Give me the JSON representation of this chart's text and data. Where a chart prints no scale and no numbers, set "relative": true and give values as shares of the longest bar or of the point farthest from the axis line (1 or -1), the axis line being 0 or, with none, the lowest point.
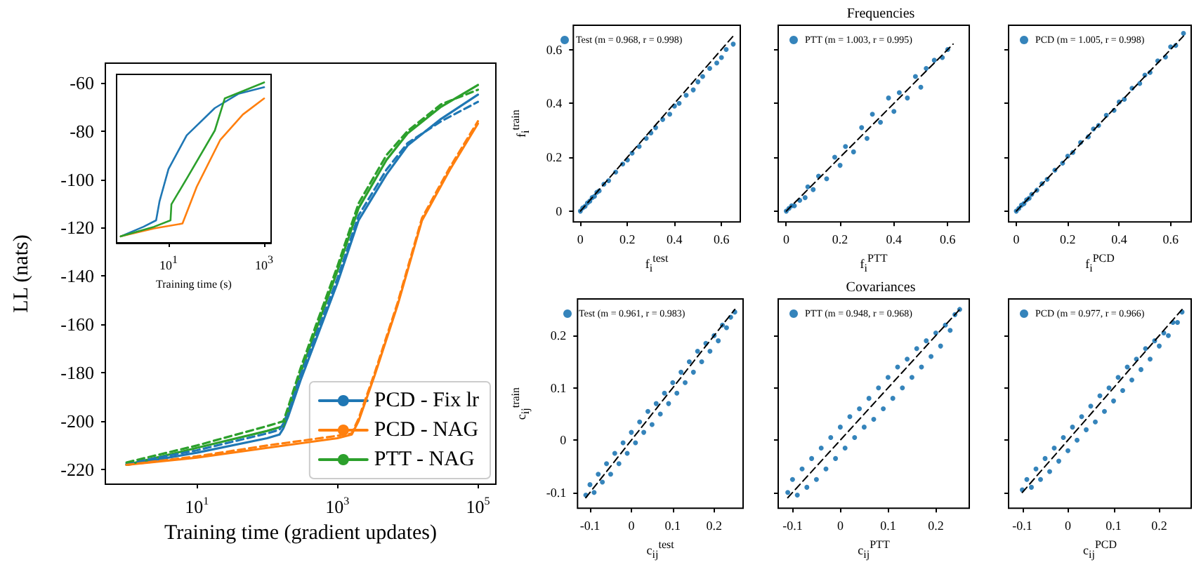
{
  "chart_data": [
    {
      "type": "line",
      "xlabel": "Training time (gradient updates)",
      "ylabel": "LL (nats)",
      "log": "x",
      "xlim": [
        0.5,
        180000
      ],
      "ylim": [
        -226,
        -52
      ],
      "xticks": [
        {
          "value": 10,
          "label": "10$^{1}$"
        },
        {
          "value": 1000,
          "label": "10$^{3}$"
        },
        {
          "value": 100000,
          "label": "10$^{5}$"
        }
      ],
      "yticks": [
        -220,
        -200,
        -180,
        -160,
        -140,
        -120,
        -100,
        -80,
        -60
      ],
      "legend": "bottom right",
      "marker": "none",
      "series": [
        {
          "name": "PCD - Fix lr",
          "color": "#1f77b4",
          "line_style": "solid",
          "x": [
            1,
            10,
            100,
            150,
            170,
            200,
            300,
            500,
            1000,
            2000,
            5000,
            10000,
            30000,
            100000
          ],
          "values": [
            -218,
            -213,
            -207,
            -205.5,
            -203,
            -198,
            -183,
            -166,
            -143,
            -117,
            -98,
            -86,
            -75,
            -65
          ]
        },
        {
          "color": "#1f77b4",
          "line_style": "dashed",
          "x": [
            1,
            10,
            100,
            150,
            170,
            200,
            300,
            500,
            1000,
            2000,
            5000,
            10000,
            30000,
            100000
          ],
          "values": [
            -217.5,
            -212,
            -205,
            -203.5,
            -201,
            -196,
            -181,
            -164,
            -141,
            -115,
            -96,
            -85,
            -76,
            -68
          ]
        },
        {
          "name": "PCD - NAG",
          "color": "#ff7f0e",
          "line_style": "solid",
          "x": [
            1,
            10,
            100,
            1000,
            1600,
            2000,
            3400,
            7200,
            16000,
            40000,
            100000
          ],
          "values": [
            -218,
            -215,
            -211,
            -207,
            -205.5,
            -200,
            -181,
            -152,
            -117,
            -96,
            -77
          ]
        },
        {
          "color": "#ff7f0e",
          "line_style": "dashed",
          "x": [
            1,
            10,
            100,
            1000,
            1600,
            2000,
            3400,
            7200,
            16000,
            40000,
            100000
          ],
          "values": [
            -218,
            -214.5,
            -210,
            -206,
            -205,
            -199,
            -180,
            -151,
            -116,
            -95,
            -76
          ]
        },
        {
          "name": "PTT - NAG",
          "color": "#2ca02c",
          "line_style": "solid",
          "x": [
            1,
            10,
            100,
            170,
            200,
            300,
            500,
            1000,
            2000,
            5000,
            10000,
            30000,
            100000
          ],
          "values": [
            -218,
            -211,
            -204,
            -202,
            -196,
            -180,
            -162,
            -138,
            -112,
            -92,
            -81,
            -70,
            -61
          ]
        },
        {
          "color": "#2ca02c",
          "line_style": "dashed",
          "x": [
            1,
            10,
            100,
            170,
            200,
            300,
            500,
            1000,
            2000,
            5000,
            10000,
            30000,
            100000
          ],
          "values": [
            -217,
            -210,
            -202,
            -200,
            -194,
            -178,
            -160,
            -136,
            -110,
            -90,
            -80,
            -69,
            -63
          ]
        }
      ]
    },
    {
      "type": "line",
      "xlabel": "Training time (s)",
      "log": "x",
      "relative": true,
      "tick_labels": "x",
      "xlim": [
        0.82,
        1400
      ],
      "xticks": [
        {
          "value": 10,
          "label": "10$^{1}$"
        },
        {
          "value": 1000,
          "label": "10$^{3}$"
        }
      ],
      "marker": "none",
      "series": [
        {
          "color": "#1f77b4",
          "line_style": "solid",
          "x": [
            1,
            3,
            5.5,
            6.5,
            10,
            24,
            93,
            295,
            1000
          ],
          "values": [
            0.04,
            0.1,
            0.14,
            0.26,
            0.46,
            0.67,
            0.84,
            0.93,
            0.97
          ]
        },
        {
          "color": "#ff7f0e",
          "line_style": "solid",
          "x": [
            1,
            5,
            19.6,
            39,
            120,
            360,
            1000
          ],
          "values": [
            0.04,
            0.09,
            0.12,
            0.35,
            0.64,
            0.8,
            0.9
          ]
        },
        {
          "color": "#2ca02c",
          "line_style": "solid",
          "x": [
            1,
            5,
            11,
            11.5,
            24,
            93,
            150,
            1000
          ],
          "values": [
            0.04,
            0.1,
            0.14,
            0.24,
            0.4,
            0.7,
            0.9,
            1
          ]
        }
      ]
    },
    {
      "type": "scatter",
      "xlabel": "f$_{i}$$^{test}$",
      "ylabel": "f$_{i}$$^{train}$",
      "xlim": [
        -0.03,
        0.68
      ],
      "ylim": [
        -0.04,
        0.69
      ],
      "xticks": [
        0.0,
        0.2,
        0.4,
        0.6
      ],
      "yticks": [
        0.0,
        0.2,
        0.4,
        0.6
      ],
      "legend": "top",
      "marker": "circle",
      "series": [
        {
          "name": "Test (m = 0.968, r = 0.998)",
          "color": "#1f77b4",
          "x": [
            0.0,
            0.01,
            0.02,
            0.03,
            0.04,
            0.05,
            0.06,
            0.07,
            0.08,
            0.1,
            0.12,
            0.15,
            0.18,
            0.2,
            0.22,
            0.25,
            0.28,
            0.3,
            0.32,
            0.35,
            0.38,
            0.4,
            0.42,
            0.45,
            0.48,
            0.5,
            0.52,
            0.55,
            0.58,
            0.6,
            0.62,
            0.65
          ],
          "values": [
            0.0,
            0.012,
            0.018,
            0.03,
            0.037,
            0.05,
            0.055,
            0.07,
            0.075,
            0.1,
            0.113,
            0.145,
            0.175,
            0.19,
            0.215,
            0.24,
            0.27,
            0.29,
            0.31,
            0.34,
            0.36,
            0.39,
            0.4,
            0.43,
            0.45,
            0.48,
            0.5,
            0.53,
            0.55,
            0.57,
            0.6,
            0.62
          ]
        },
        {
          "type": "line",
          "color": "#000000",
          "line_style": "dashed",
          "marker": "none",
          "x": [
            0.0,
            0.65
          ],
          "values": [
            0.0,
            0.65
          ]
        }
      ]
    },
    {
      "type": "scatter",
      "title": "Frequencies",
      "xlabel": "f$_{i}$$^{PTT}$",
      "tick_labels": "x",
      "xlim": [
        -0.03,
        0.68
      ],
      "ylim": [
        -0.04,
        0.69
      ],
      "xticks": [
        0.0,
        0.2,
        0.4,
        0.6
      ],
      "yticks": [
        0.0,
        0.2,
        0.4,
        0.6
      ],
      "legend": "top",
      "marker": "circle",
      "series": [
        {
          "name": "PTT (m = 1.003, r = 0.995)",
          "color": "#1f77b4",
          "x": [
            0.0,
            0.01,
            0.02,
            0.03,
            0.05,
            0.07,
            0.08,
            0.1,
            0.12,
            0.15,
            0.18,
            0.2,
            0.22,
            0.25,
            0.28,
            0.3,
            0.32,
            0.35,
            0.38,
            0.4,
            0.42,
            0.45,
            0.48,
            0.5,
            0.52,
            0.55,
            0.58,
            0.6
          ],
          "values": [
            0.0,
            0.01,
            0.02,
            0.02,
            0.04,
            0.05,
            0.09,
            0.08,
            0.13,
            0.12,
            0.2,
            0.17,
            0.24,
            0.22,
            0.31,
            0.27,
            0.36,
            0.33,
            0.42,
            0.37,
            0.44,
            0.42,
            0.5,
            0.46,
            0.53,
            0.56,
            0.57,
            0.6
          ]
        },
        {
          "type": "line",
          "color": "#000000",
          "line_style": "dashed",
          "marker": "none",
          "x": [
            0.0,
            0.62
          ],
          "values": [
            0.0,
            0.62
          ]
        }
      ]
    },
    {
      "type": "scatter",
      "xlabel": "f$_{i}$$^{PCD}$",
      "tick_labels": "x",
      "xlim": [
        -0.03,
        0.68
      ],
      "ylim": [
        -0.04,
        0.69
      ],
      "xticks": [
        0.0,
        0.2,
        0.4,
        0.6
      ],
      "yticks": [
        0.0,
        0.2,
        0.4,
        0.6
      ],
      "legend": "top",
      "marker": "circle",
      "series": [
        {
          "name": "PCD (m = 1.005, r = 0.998)",
          "color": "#1f77b4",
          "x": [
            0.0,
            0.01,
            0.02,
            0.03,
            0.04,
            0.05,
            0.06,
            0.08,
            0.1,
            0.12,
            0.15,
            0.18,
            0.2,
            0.22,
            0.25,
            0.28,
            0.3,
            0.32,
            0.35,
            0.38,
            0.4,
            0.42,
            0.45,
            0.48,
            0.5,
            0.52,
            0.55,
            0.58,
            0.6,
            0.62,
            0.65
          ],
          "values": [
            0.0,
            0.01,
            0.022,
            0.028,
            0.042,
            0.048,
            0.062,
            0.078,
            0.102,
            0.118,
            0.152,
            0.178,
            0.204,
            0.218,
            0.255,
            0.276,
            0.305,
            0.318,
            0.356,
            0.374,
            0.405,
            0.415,
            0.456,
            0.474,
            0.505,
            0.515,
            0.558,
            0.572,
            0.61,
            0.615,
            0.66
          ]
        },
        {
          "type": "line",
          "color": "#000000",
          "line_style": "dashed",
          "marker": "none",
          "x": [
            0.0,
            0.65
          ],
          "values": [
            0.0,
            0.65
          ]
        }
      ]
    },
    {
      "type": "scatter",
      "xlabel": "c$_{ij}$$^{test}$",
      "ylabel": "c$_{ij}$$^{train}$",
      "xlim": [
        -0.13,
        0.27
      ],
      "ylim": [
        -0.13,
        0.27
      ],
      "xticks": [
        -0.1,
        0.0,
        0.1,
        0.2
      ],
      "yticks": [
        -0.1,
        0.0,
        0.1,
        0.2
      ],
      "legend": "top",
      "marker": "circle",
      "series": [
        {
          "name": "Test (m = 0.961, r = 0.983)",
          "color": "#1f77b4",
          "x": [
            -0.11,
            -0.1,
            -0.09,
            -0.08,
            -0.07,
            -0.06,
            -0.05,
            -0.04,
            -0.03,
            -0.02,
            -0.01,
            0.0,
            0.01,
            0.02,
            0.03,
            0.04,
            0.05,
            0.06,
            0.07,
            0.08,
            0.09,
            0.1,
            0.11,
            0.12,
            0.13,
            0.14,
            0.15,
            0.16,
            0.17,
            0.18,
            0.19,
            0.2,
            0.21,
            0.22,
            0.23,
            0.24,
            0.25
          ],
          "values": [
            -0.105,
            -0.085,
            -0.1,
            -0.065,
            -0.08,
            -0.045,
            -0.065,
            -0.025,
            -0.045,
            -0.005,
            -0.025,
            0.015,
            -0.005,
            0.035,
            0.015,
            0.055,
            0.03,
            0.07,
            0.05,
            0.09,
            0.07,
            0.11,
            0.09,
            0.13,
            0.11,
            0.15,
            0.13,
            0.17,
            0.15,
            0.185,
            0.17,
            0.2,
            0.19,
            0.22,
            0.215,
            0.235,
            0.245
          ]
        },
        {
          "type": "line",
          "color": "#000000",
          "line_style": "dashed",
          "marker": "none",
          "x": [
            -0.11,
            0.25
          ],
          "values": [
            -0.11,
            0.25
          ]
        }
      ]
    },
    {
      "type": "scatter",
      "title": "Covariances",
      "xlabel": "c$_{ij}$$^{PTT}$",
      "tick_labels": "x",
      "xlim": [
        -0.13,
        0.27
      ],
      "ylim": [
        -0.13,
        0.27
      ],
      "xticks": [
        -0.1,
        0.0,
        0.1,
        0.2
      ],
      "yticks": [
        -0.1,
        0.0,
        0.1,
        0.2
      ],
      "legend": "top",
      "marker": "circle",
      "series": [
        {
          "name": "PTT (m = 0.948, r = 0.968)",
          "color": "#1f77b4",
          "x": [
            -0.11,
            -0.1,
            -0.09,
            -0.08,
            -0.07,
            -0.06,
            -0.05,
            -0.04,
            -0.03,
            -0.02,
            -0.01,
            0.0,
            0.01,
            0.02,
            0.03,
            0.04,
            0.05,
            0.06,
            0.07,
            0.08,
            0.09,
            0.1,
            0.11,
            0.12,
            0.13,
            0.14,
            0.15,
            0.16,
            0.17,
            0.18,
            0.19,
            0.2,
            0.21,
            0.22,
            0.23,
            0.24,
            0.25
          ],
          "values": [
            -0.1,
            -0.075,
            -0.105,
            -0.055,
            -0.09,
            -0.035,
            -0.075,
            -0.015,
            -0.055,
            0.005,
            -0.035,
            0.025,
            -0.015,
            0.045,
            0.005,
            0.06,
            0.025,
            0.08,
            0.04,
            0.1,
            0.06,
            0.12,
            0.08,
            0.14,
            0.1,
            0.155,
            0.12,
            0.175,
            0.14,
            0.19,
            0.16,
            0.205,
            0.18,
            0.22,
            0.21,
            0.24,
            0.25
          ]
        },
        {
          "type": "line",
          "color": "#000000",
          "line_style": "dashed",
          "marker": "none",
          "x": [
            -0.11,
            0.25
          ],
          "values": [
            -0.11,
            0.25
          ]
        }
      ]
    },
    {
      "type": "scatter",
      "xlabel": "c$_{ij}$$^{PCD}$",
      "tick_labels": "x",
      "xlim": [
        -0.13,
        0.27
      ],
      "ylim": [
        -0.13,
        0.27
      ],
      "xticks": [
        -0.1,
        0.0,
        0.1,
        0.2
      ],
      "yticks": [
        -0.1,
        0.0,
        0.1,
        0.2
      ],
      "legend": "top",
      "marker": "circle",
      "series": [
        {
          "name": "PCD (m = 0.977, r = 0.966)",
          "color": "#1f77b4",
          "x": [
            -0.1,
            -0.09,
            -0.08,
            -0.07,
            -0.06,
            -0.05,
            -0.04,
            -0.03,
            -0.02,
            -0.01,
            0.0,
            0.01,
            0.02,
            0.03,
            0.04,
            0.05,
            0.06,
            0.07,
            0.08,
            0.09,
            0.1,
            0.11,
            0.12,
            0.13,
            0.14,
            0.15,
            0.16,
            0.17,
            0.18,
            0.19,
            0.2,
            0.21,
            0.22,
            0.23,
            0.24,
            0.25
          ],
          "values": [
            -0.095,
            -0.075,
            -0.09,
            -0.055,
            -0.075,
            -0.035,
            -0.06,
            -0.015,
            -0.04,
            0.005,
            -0.02,
            0.025,
            0.0,
            0.045,
            0.02,
            0.065,
            0.035,
            0.085,
            0.055,
            0.1,
            0.075,
            0.12,
            0.095,
            0.14,
            0.115,
            0.155,
            0.135,
            0.175,
            0.155,
            0.19,
            0.18,
            0.205,
            0.2,
            0.225,
            0.225,
            0.245
          ]
        },
        {
          "type": "line",
          "color": "#000000",
          "line_style": "dashed",
          "marker": "none",
          "x": [
            -0.1,
            0.25
          ],
          "values": [
            -0.1,
            0.25
          ]
        }
      ]
    }
  ]
}
